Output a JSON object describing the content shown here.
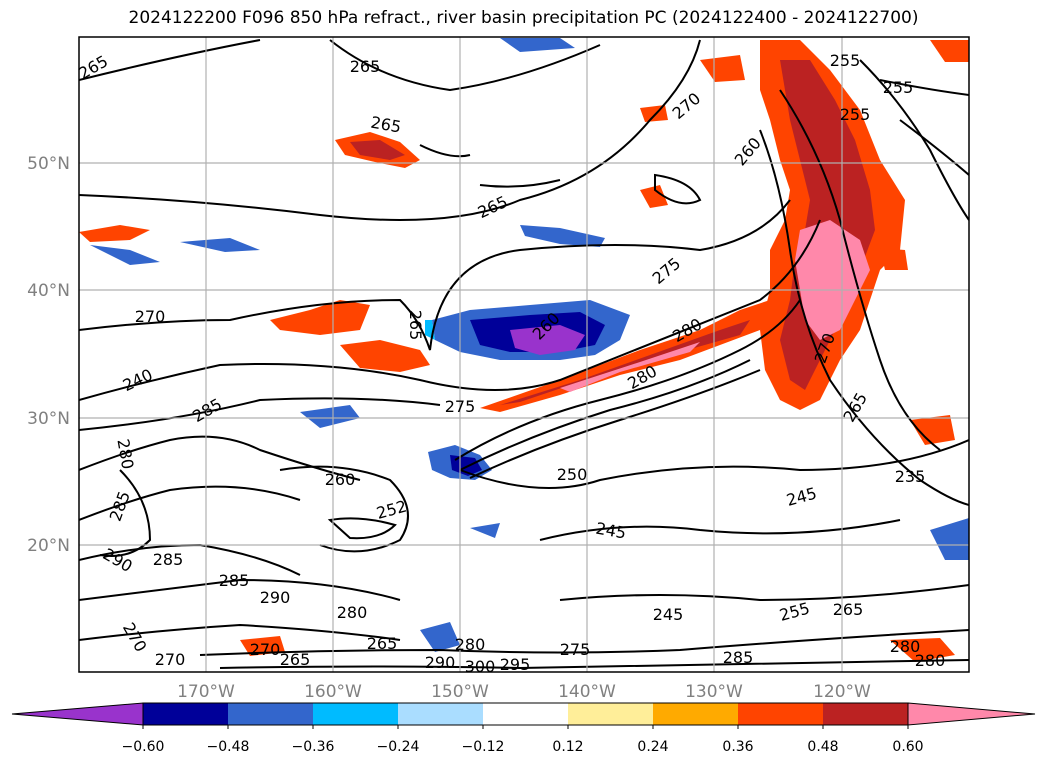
{
  "title": "2024122200 F096 850 hPa refract., river basin precipitation PC (2024122400 - 2024122700)",
  "lat_labels": [
    "50°N",
    "40°N",
    "30°N",
    "20°N"
  ],
  "lon_labels": [
    "170°W",
    "160°W",
    "150°W",
    "140°W",
    "130°W",
    "120°W"
  ],
  "colorbar": {
    "colors": [
      "#9933cc",
      "#000099",
      "#3366cc",
      "#00bbff",
      "#aaddff",
      "#ffffff",
      "#ffee99",
      "#ffaa00",
      "#ff4400",
      "#bb2222",
      "#ff88aa"
    ],
    "ticks": [
      "−0.60",
      "−0.48",
      "−0.36",
      "−0.24",
      "−0.12",
      "0.12",
      "0.24",
      "0.36",
      "0.48",
      "0.60"
    ],
    "extend": "both"
  },
  "contour_labels": [
    "265",
    "265",
    "265",
    "255",
    "255",
    "255",
    "270",
    "260",
    "265",
    "275",
    "265",
    "270",
    "260",
    "280",
    "270",
    "265",
    "280",
    "240",
    "285",
    "275",
    "280",
    "250",
    "245",
    "285",
    "260",
    "252",
    "245",
    "235",
    "290",
    "285",
    "285",
    "290",
    "280",
    "245",
    "255",
    "265",
    "265",
    "270",
    "265",
    "280",
    "275",
    "285",
    "280",
    "280",
    "295",
    "290",
    "300",
    "270",
    "270"
  ],
  "grid": true,
  "legend_position": "bottom"
}
